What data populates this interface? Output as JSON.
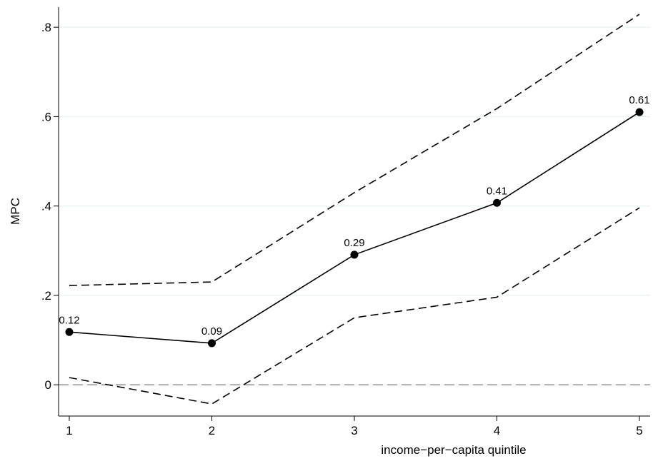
{
  "chart_data": {
    "type": "line",
    "x_label": "income−per−capita quintile",
    "y_label": "MPC",
    "x": [
      1,
      2,
      3,
      4,
      5
    ],
    "series": [
      {
        "color": "#000000",
        "dash": false,
        "markers": true,
        "values": [
          0.118,
          0.093,
          0.291,
          0.407,
          0.61
        ],
        "value_labels": [
          "0.12",
          "0.09",
          "0.29",
          "0.41",
          "0.61"
        ]
      },
      {
        "color": "#000000",
        "dash": true,
        "markers": false,
        "values": [
          0.222,
          0.23,
          0.43,
          0.618,
          0.829
        ]
      },
      {
        "color": "#000000",
        "dash": true,
        "markers": false,
        "values": [
          0.016,
          -0.043,
          0.15,
          0.196,
          0.396
        ]
      }
    ],
    "reference_line": 0,
    "xlim": [
      0.925,
      5.075
    ],
    "xticks": [
      1,
      2,
      3,
      4,
      5
    ],
    "ylim": [
      -0.07,
      0.845
    ],
    "yticks": [
      0,
      {
        "value": 0.2,
        "label": ".2"
      },
      {
        "value": 0.4,
        "label": ".4"
      },
      {
        "value": 0.6,
        "label": ".6"
      },
      {
        "value": 0.8,
        "label": ".8"
      }
    ],
    "grid": true
  }
}
